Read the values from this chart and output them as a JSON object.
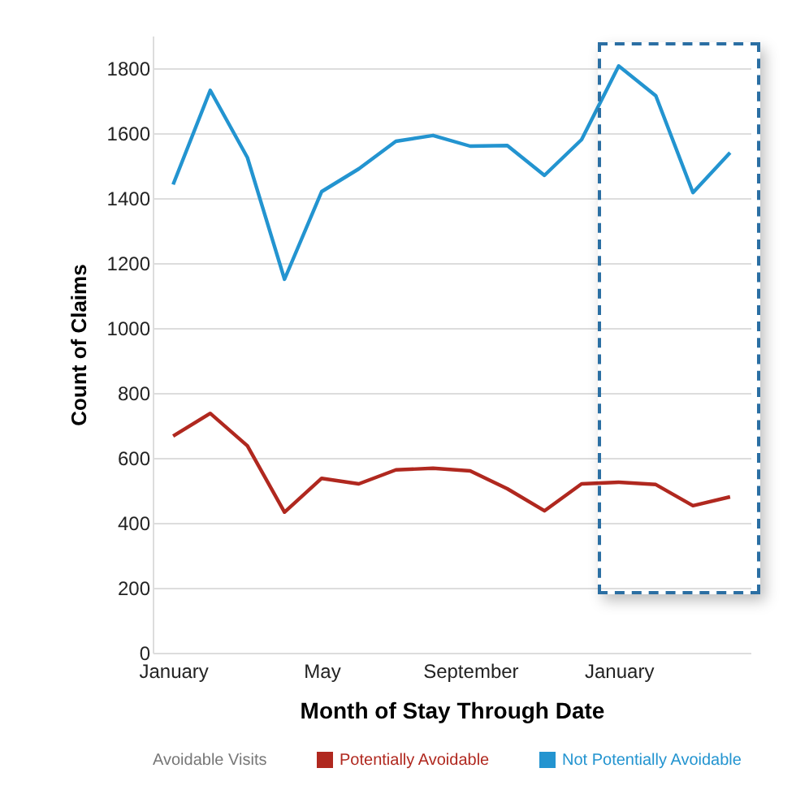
{
  "chart_data": {
    "type": "line",
    "xlabel": "Month of Stay Through Date",
    "ylabel": "Count of Claims",
    "legend_title": "Avoidable Visits",
    "categories": [
      "January",
      null,
      null,
      null,
      "May",
      null,
      null,
      null,
      "September",
      null,
      null,
      null,
      "January",
      null,
      null,
      null
    ],
    "series": [
      {
        "name": "Potentially Avoidable",
        "color": "#b0281f",
        "values": [
          667,
          737,
          637,
          433,
          537,
          520,
          563,
          568,
          560,
          505,
          437,
          520,
          525,
          518,
          453,
          480
        ]
      },
      {
        "name": "Not Potentially Avoidable",
        "color": "#2394d0",
        "values": [
          1442,
          1732,
          1525,
          1150,
          1420,
          1490,
          1575,
          1593,
          1560,
          1562,
          1470,
          1580,
          1807,
          1715,
          1417,
          1540
        ]
      }
    ],
    "ylim": [
      0,
      1900
    ],
    "yticks": [
      0,
      200,
      400,
      600,
      800,
      1000,
      1200,
      1400,
      1600,
      1800
    ],
    "grid": "y",
    "legend": "bottom",
    "marker": "none",
    "line_style": "solid"
  }
}
